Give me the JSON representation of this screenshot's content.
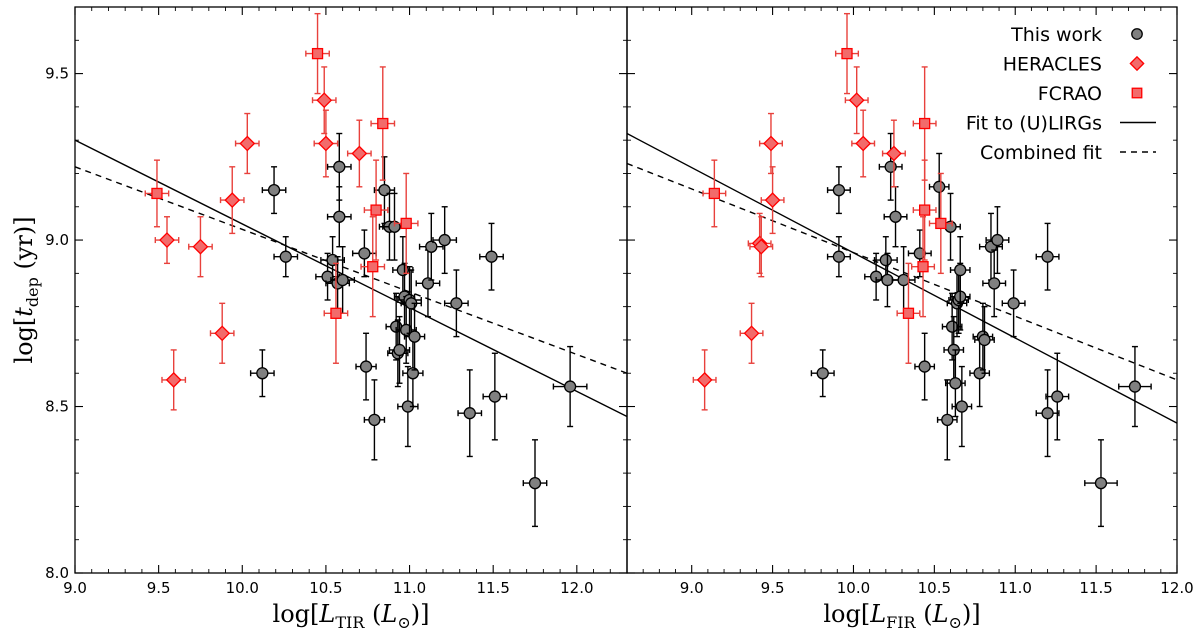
{
  "chart_data": [
    {
      "type": "scatter",
      "panel": "left",
      "xlabel": "log[L_TIR (L_⊙)]",
      "ylabel": "log[t_dep (yr)]",
      "xlim": [
        9.0,
        12.3
      ],
      "ylim": [
        8.0,
        9.7
      ],
      "xticks": [
        "9.0",
        "9.5",
        "10.0",
        "10.5",
        "11.0",
        "11.5",
        "12.0"
      ],
      "yticks": [
        "8.0",
        "8.5",
        "9.0",
        "9.5"
      ],
      "series": [
        {
          "name": "This work",
          "marker": "circle",
          "color": "#808080",
          "points": [
            {
              "x": 10.12,
              "y": 8.6,
              "xerr": 0.07,
              "yerr": 0.07
            },
            {
              "x": 10.19,
              "y": 9.15,
              "xerr": 0.07,
              "yerr": 0.07
            },
            {
              "x": 10.26,
              "y": 8.95,
              "xerr": 0.07,
              "yerr": 0.06
            },
            {
              "x": 10.51,
              "y": 8.89,
              "xerr": 0.07,
              "yerr": 0.07
            },
            {
              "x": 10.54,
              "y": 8.94,
              "xerr": 0.07,
              "yerr": 0.07
            },
            {
              "x": 10.57,
              "y": 8.87,
              "xerr": 0.07,
              "yerr": 0.08
            },
            {
              "x": 10.58,
              "y": 9.07,
              "xerr": 0.07,
              "yerr": 0.09
            },
            {
              "x": 10.58,
              "y": 9.22,
              "xerr": 0.07,
              "yerr": 0.1
            },
            {
              "x": 10.6,
              "y": 8.88,
              "xerr": 0.07,
              "yerr": 0.1
            },
            {
              "x": 10.73,
              "y": 8.96,
              "xerr": 0.07,
              "yerr": 0.07
            },
            {
              "x": 10.74,
              "y": 8.62,
              "xerr": 0.06,
              "yerr": 0.1
            },
            {
              "x": 10.79,
              "y": 8.46,
              "xerr": 0.06,
              "yerr": 0.12
            },
            {
              "x": 10.85,
              "y": 9.15,
              "xerr": 0.06,
              "yerr": 0.1
            },
            {
              "x": 10.88,
              "y": 9.04,
              "xerr": 0.06,
              "yerr": 0.1
            },
            {
              "x": 10.91,
              "y": 9.04,
              "xerr": 0.07,
              "yerr": 0.1
            },
            {
              "x": 10.92,
              "y": 8.74,
              "xerr": 0.06,
              "yerr": 0.1
            },
            {
              "x": 10.93,
              "y": 8.66,
              "xerr": 0.06,
              "yerr": 0.1
            },
            {
              "x": 10.94,
              "y": 8.67,
              "xerr": 0.06,
              "yerr": 0.1
            },
            {
              "x": 10.96,
              "y": 8.91,
              "xerr": 0.06,
              "yerr": 0.1
            },
            {
              "x": 10.97,
              "y": 8.83,
              "xerr": 0.06,
              "yerr": 0.1
            },
            {
              "x": 10.98,
              "y": 8.73,
              "xerr": 0.06,
              "yerr": 0.1
            },
            {
              "x": 10.99,
              "y": 8.5,
              "xerr": 0.06,
              "yerr": 0.12
            },
            {
              "x": 11.0,
              "y": 8.82,
              "xerr": 0.07,
              "yerr": 0.1
            },
            {
              "x": 11.01,
              "y": 8.81,
              "xerr": 0.06,
              "yerr": 0.1
            },
            {
              "x": 11.02,
              "y": 8.6,
              "xerr": 0.06,
              "yerr": 0.1
            },
            {
              "x": 11.03,
              "y": 8.71,
              "xerr": 0.06,
              "yerr": 0.1
            },
            {
              "x": 11.11,
              "y": 8.87,
              "xerr": 0.07,
              "yerr": 0.1
            },
            {
              "x": 11.13,
              "y": 8.98,
              "xerr": 0.07,
              "yerr": 0.1
            },
            {
              "x": 11.21,
              "y": 9.0,
              "xerr": 0.07,
              "yerr": 0.1
            },
            {
              "x": 11.28,
              "y": 8.81,
              "xerr": 0.07,
              "yerr": 0.1
            },
            {
              "x": 11.36,
              "y": 8.48,
              "xerr": 0.07,
              "yerr": 0.13
            },
            {
              "x": 11.49,
              "y": 8.95,
              "xerr": 0.07,
              "yerr": 0.1
            },
            {
              "x": 11.51,
              "y": 8.53,
              "xerr": 0.07,
              "yerr": 0.13
            },
            {
              "x": 11.75,
              "y": 8.27,
              "xerr": 0.07,
              "yerr": 0.13
            },
            {
              "x": 11.96,
              "y": 8.56,
              "xerr": 0.1,
              "yerr": 0.12
            }
          ]
        },
        {
          "name": "HERACLES",
          "marker": "diamond",
          "color": "#ff0000",
          "points": [
            {
              "x": 9.55,
              "y": 9.0,
              "xerr": 0.07,
              "yerr": 0.07
            },
            {
              "x": 9.59,
              "y": 8.58,
              "xerr": 0.07,
              "yerr": 0.09
            },
            {
              "x": 9.75,
              "y": 8.98,
              "xerr": 0.07,
              "yerr": 0.09
            },
            {
              "x": 9.88,
              "y": 8.72,
              "xerr": 0.07,
              "yerr": 0.09
            },
            {
              "x": 9.94,
              "y": 9.12,
              "xerr": 0.07,
              "yerr": 0.1
            },
            {
              "x": 10.03,
              "y": 9.29,
              "xerr": 0.07,
              "yerr": 0.09
            },
            {
              "x": 10.49,
              "y": 9.42,
              "xerr": 0.07,
              "yerr": 0.1
            },
            {
              "x": 10.5,
              "y": 9.29,
              "xerr": 0.07,
              "yerr": 0.1
            },
            {
              "x": 10.7,
              "y": 9.26,
              "xerr": 0.07,
              "yerr": 0.1
            }
          ]
        },
        {
          "name": "FCRAO",
          "marker": "square",
          "color": "#ff0000",
          "points": [
            {
              "x": 9.49,
              "y": 9.14,
              "xerr": 0.07,
              "yerr": 0.1
            },
            {
              "x": 10.45,
              "y": 9.56,
              "xerr": 0.07,
              "yerr": 0.12
            },
            {
              "x": 10.56,
              "y": 8.78,
              "xerr": 0.07,
              "yerr": 0.15
            },
            {
              "x": 10.78,
              "y": 8.92,
              "xerr": 0.07,
              "yerr": 0.15
            },
            {
              "x": 10.8,
              "y": 9.09,
              "xerr": 0.07,
              "yerr": 0.15
            },
            {
              "x": 10.84,
              "y": 9.35,
              "xerr": 0.07,
              "yerr": 0.17
            },
            {
              "x": 10.98,
              "y": 9.05,
              "xerr": 0.07,
              "yerr": 0.15
            }
          ]
        }
      ],
      "fits": [
        {
          "name": "Fit to (U)LIRGs",
          "style": "solid",
          "x": [
            9.0,
            12.3
          ],
          "y": [
            9.3,
            8.47
          ]
        },
        {
          "name": "Combined fit",
          "style": "dashed",
          "x": [
            9.0,
            12.3
          ],
          "y": [
            9.22,
            8.6
          ]
        }
      ]
    },
    {
      "type": "scatter",
      "panel": "right",
      "xlabel": "log[L_FIR (L_⊙)]",
      "ylabel": "",
      "xlim": [
        8.6,
        12.0
      ],
      "ylim": [
        8.0,
        9.7
      ],
      "xticks": [
        "9.0",
        "9.5",
        "10.0",
        "10.5",
        "11.0",
        "11.5",
        "12.0"
      ],
      "yticks": [],
      "legend_position": "top-right",
      "series": [
        {
          "name": "This work",
          "marker": "circle",
          "color": "#808080",
          "points": [
            {
              "x": 9.81,
              "y": 8.6,
              "xerr": 0.07,
              "yerr": 0.07
            },
            {
              "x": 9.91,
              "y": 9.15,
              "xerr": 0.07,
              "yerr": 0.07
            },
            {
              "x": 9.91,
              "y": 8.95,
              "xerr": 0.07,
              "yerr": 0.06
            },
            {
              "x": 10.14,
              "y": 8.89,
              "xerr": 0.07,
              "yerr": 0.07
            },
            {
              "x": 10.2,
              "y": 8.94,
              "xerr": 0.07,
              "yerr": 0.07
            },
            {
              "x": 10.21,
              "y": 8.88,
              "xerr": 0.07,
              "yerr": 0.08
            },
            {
              "x": 10.23,
              "y": 9.22,
              "xerr": 0.07,
              "yerr": 0.1
            },
            {
              "x": 10.26,
              "y": 9.07,
              "xerr": 0.07,
              "yerr": 0.09
            },
            {
              "x": 10.31,
              "y": 8.88,
              "xerr": 0.07,
              "yerr": 0.1
            },
            {
              "x": 10.41,
              "y": 8.96,
              "xerr": 0.07,
              "yerr": 0.07
            },
            {
              "x": 10.44,
              "y": 8.62,
              "xerr": 0.06,
              "yerr": 0.1
            },
            {
              "x": 10.53,
              "y": 9.16,
              "xerr": 0.06,
              "yerr": 0.1
            },
            {
              "x": 10.58,
              "y": 8.46,
              "xerr": 0.06,
              "yerr": 0.12
            },
            {
              "x": 10.6,
              "y": 9.04,
              "xerr": 0.06,
              "yerr": 0.1
            },
            {
              "x": 10.61,
              "y": 8.74,
              "xerr": 0.06,
              "yerr": 0.1
            },
            {
              "x": 10.62,
              "y": 8.67,
              "xerr": 0.06,
              "yerr": 0.1
            },
            {
              "x": 10.63,
              "y": 8.57,
              "xerr": 0.06,
              "yerr": 0.1
            },
            {
              "x": 10.64,
              "y": 8.81,
              "xerr": 0.06,
              "yerr": 0.1
            },
            {
              "x": 10.65,
              "y": 8.82,
              "xerr": 0.06,
              "yerr": 0.1
            },
            {
              "x": 10.66,
              "y": 8.83,
              "xerr": 0.06,
              "yerr": 0.1
            },
            {
              "x": 10.66,
              "y": 8.91,
              "xerr": 0.06,
              "yerr": 0.1
            },
            {
              "x": 10.67,
              "y": 8.5,
              "xerr": 0.06,
              "yerr": 0.12
            },
            {
              "x": 10.78,
              "y": 8.6,
              "xerr": 0.06,
              "yerr": 0.1
            },
            {
              "x": 10.8,
              "y": 8.71,
              "xerr": 0.06,
              "yerr": 0.1
            },
            {
              "x": 10.81,
              "y": 8.7,
              "xerr": 0.06,
              "yerr": 0.1
            },
            {
              "x": 10.85,
              "y": 8.98,
              "xerr": 0.07,
              "yerr": 0.1
            },
            {
              "x": 10.87,
              "y": 8.87,
              "xerr": 0.07,
              "yerr": 0.1
            },
            {
              "x": 10.89,
              "y": 9.0,
              "xerr": 0.07,
              "yerr": 0.1
            },
            {
              "x": 10.99,
              "y": 8.81,
              "xerr": 0.07,
              "yerr": 0.1
            },
            {
              "x": 11.2,
              "y": 8.95,
              "xerr": 0.07,
              "yerr": 0.1
            },
            {
              "x": 11.2,
              "y": 8.48,
              "xerr": 0.07,
              "yerr": 0.13
            },
            {
              "x": 11.26,
              "y": 8.53,
              "xerr": 0.07,
              "yerr": 0.13
            },
            {
              "x": 11.53,
              "y": 8.27,
              "xerr": 0.1,
              "yerr": 0.13
            },
            {
              "x": 11.74,
              "y": 8.56,
              "xerr": 0.1,
              "yerr": 0.12
            }
          ]
        },
        {
          "name": "HERACLES",
          "marker": "diamond",
          "color": "#ff0000",
          "points": [
            {
              "x": 9.08,
              "y": 8.58,
              "xerr": 0.07,
              "yerr": 0.09
            },
            {
              "x": 9.37,
              "y": 8.72,
              "xerr": 0.07,
              "yerr": 0.09
            },
            {
              "x": 9.42,
              "y": 8.99,
              "xerr": 0.07,
              "yerr": 0.09
            },
            {
              "x": 9.43,
              "y": 8.98,
              "xerr": 0.07,
              "yerr": 0.09
            },
            {
              "x": 9.49,
              "y": 9.29,
              "xerr": 0.07,
              "yerr": 0.09
            },
            {
              "x": 9.5,
              "y": 9.12,
              "xerr": 0.07,
              "yerr": 0.1
            },
            {
              "x": 10.02,
              "y": 9.42,
              "xerr": 0.07,
              "yerr": 0.1
            },
            {
              "x": 10.06,
              "y": 9.29,
              "xerr": 0.07,
              "yerr": 0.1
            },
            {
              "x": 10.25,
              "y": 9.26,
              "xerr": 0.07,
              "yerr": 0.1
            }
          ]
        },
        {
          "name": "FCRAO",
          "marker": "square",
          "color": "#ff0000",
          "points": [
            {
              "x": 9.14,
              "y": 9.14,
              "xerr": 0.07,
              "yerr": 0.1
            },
            {
              "x": 9.96,
              "y": 9.56,
              "xerr": 0.07,
              "yerr": 0.12
            },
            {
              "x": 10.34,
              "y": 8.78,
              "xerr": 0.07,
              "yerr": 0.15
            },
            {
              "x": 10.43,
              "y": 8.92,
              "xerr": 0.07,
              "yerr": 0.15
            },
            {
              "x": 10.44,
              "y": 9.09,
              "xerr": 0.07,
              "yerr": 0.15
            },
            {
              "x": 10.44,
              "y": 9.35,
              "xerr": 0.07,
              "yerr": 0.17
            },
            {
              "x": 10.54,
              "y": 9.05,
              "xerr": 0.07,
              "yerr": 0.15
            }
          ]
        }
      ],
      "fits": [
        {
          "name": "Fit to (U)LIRGs",
          "style": "solid",
          "x": [
            8.6,
            12.0
          ],
          "y": [
            9.32,
            8.45
          ]
        },
        {
          "name": "Combined fit",
          "style": "dashed",
          "x": [
            8.6,
            12.0
          ],
          "y": [
            9.23,
            8.58
          ]
        }
      ]
    }
  ],
  "legend": [
    {
      "label": "This work",
      "marker": "circle"
    },
    {
      "label": "HERACLES",
      "marker": "diamond"
    },
    {
      "label": "FCRAO",
      "marker": "square"
    },
    {
      "label": "Fit to (U)LIRGs",
      "marker": "solid-line"
    },
    {
      "label": "Combined fit",
      "marker": "dashed-line"
    }
  ],
  "axis_text": {
    "left_xlabel": {
      "log": "log[",
      "L": "L",
      "sub": "TIR",
      "open": " (",
      "Lsun": "L",
      "sun": "⊙",
      "close": ")]"
    },
    "right_xlabel": {
      "log": "log[",
      "L": "L",
      "sub": "FIR",
      "open": " (",
      "Lsun": "L",
      "sun": "⊙",
      "close": ")]"
    },
    "ylabel": {
      "log": "log[",
      "t": "t",
      "sub": "dep",
      "rest": " (yr)]"
    }
  },
  "colors": {
    "this_work_fill": "#808080",
    "red_edge": "#ff0000",
    "red_fill": "#f26b6b",
    "err_black": "#000000",
    "err_red": "#e8413c"
  }
}
